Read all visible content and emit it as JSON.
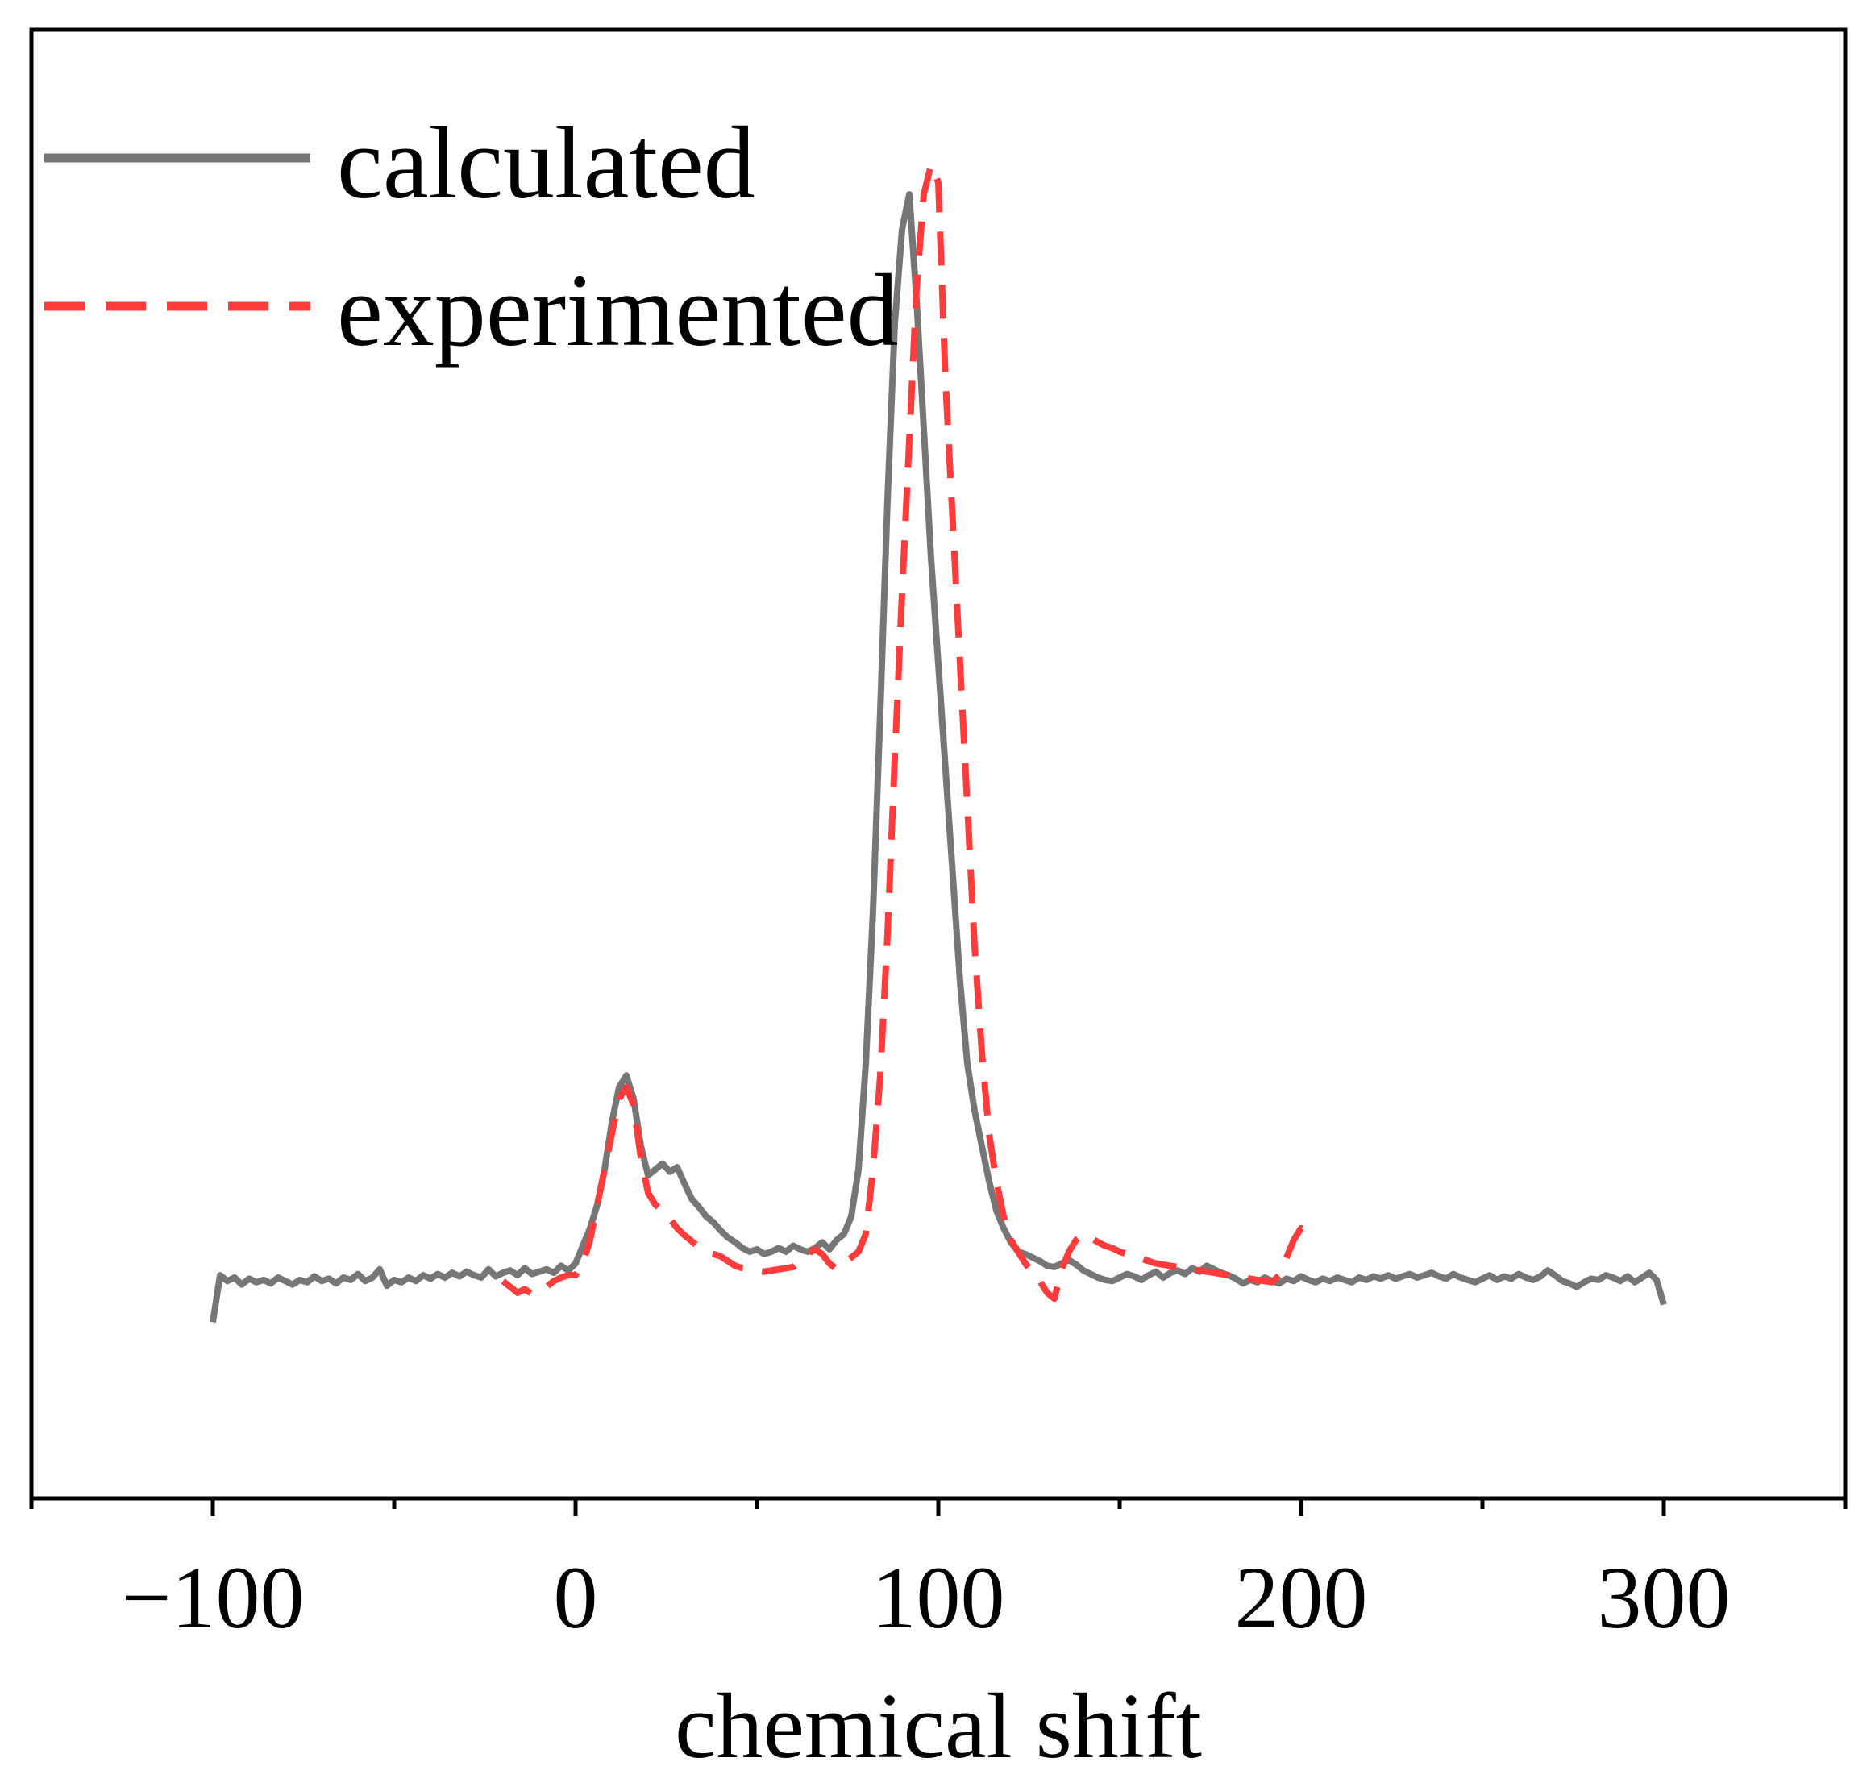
{
  "chart_data": {
    "type": "line",
    "title": "",
    "xlabel": "chemical shift",
    "ylabel": "",
    "xlim": [
      -150,
      350
    ],
    "ylim": [
      -0.15,
      1.1
    ],
    "xticks_major": [
      -100,
      0,
      100,
      200,
      300
    ],
    "xticks_minor": [
      -150,
      -50,
      50,
      150,
      250,
      350
    ],
    "xtick_labels": [
      "−100",
      "0",
      "100",
      "200",
      "300"
    ],
    "legend_position": "top-left",
    "series": [
      {
        "name": "calculated",
        "color": "#767676",
        "style": "solid",
        "x": [
          -100,
          -98,
          -96,
          -94,
          -92,
          -90,
          -88,
          -86,
          -84,
          -82,
          -80,
          -78,
          -76,
          -74,
          -72,
          -70,
          -68,
          -66,
          -64,
          -62,
          -60,
          -58,
          -56,
          -54,
          -52,
          -50,
          -48,
          -46,
          -44,
          -42,
          -40,
          -38,
          -36,
          -34,
          -32,
          -30,
          -28,
          -26,
          -24,
          -22,
          -20,
          -18,
          -16,
          -14,
          -12,
          -10,
          -8,
          -6,
          -4,
          -2,
          0,
          2,
          4,
          6,
          8,
          10,
          12,
          14,
          16,
          18,
          20,
          22,
          24,
          26,
          28,
          30,
          32,
          34,
          36,
          38,
          40,
          42,
          44,
          46,
          48,
          50,
          52,
          54,
          56,
          58,
          60,
          62,
          64,
          66,
          68,
          70,
          72,
          74,
          76,
          78,
          80,
          82,
          84,
          86,
          88,
          90,
          92,
          94,
          96,
          98,
          100,
          102,
          104,
          106,
          108,
          110,
          112,
          114,
          116,
          118,
          120,
          122,
          124,
          126,
          128,
          130,
          132,
          134,
          136,
          138,
          140,
          142,
          144,
          146,
          148,
          150,
          152,
          154,
          156,
          158,
          160,
          162,
          164,
          166,
          168,
          170,
          172,
          174,
          176,
          178,
          180,
          182,
          184,
          186,
          188,
          190,
          192,
          194,
          196,
          198,
          200,
          202,
          204,
          206,
          208,
          210,
          212,
          214,
          216,
          218,
          220,
          222,
          224,
          226,
          228,
          230,
          232,
          234,
          236,
          238,
          240,
          242,
          244,
          246,
          248,
          250,
          252,
          254,
          256,
          258,
          260,
          262,
          264,
          266,
          268,
          270,
          272,
          274,
          276,
          278,
          280,
          282,
          284,
          286,
          288,
          290,
          292,
          294,
          296,
          298,
          300
        ],
        "y": [
          0.0,
          0.04,
          0.035,
          0.038,
          0.032,
          0.037,
          0.034,
          0.036,
          0.033,
          0.038,
          0.035,
          0.032,
          0.036,
          0.034,
          0.039,
          0.035,
          0.037,
          0.033,
          0.038,
          0.036,
          0.041,
          0.035,
          0.038,
          0.045,
          0.031,
          0.036,
          0.034,
          0.038,
          0.035,
          0.04,
          0.037,
          0.041,
          0.038,
          0.042,
          0.039,
          0.043,
          0.04,
          0.038,
          0.045,
          0.039,
          0.042,
          0.044,
          0.04,
          0.046,
          0.041,
          0.043,
          0.045,
          0.042,
          0.048,
          0.044,
          0.05,
          0.065,
          0.08,
          0.1,
          0.13,
          0.17,
          0.2,
          0.21,
          0.19,
          0.15,
          0.125,
          0.13,
          0.135,
          0.128,
          0.132,
          0.118,
          0.105,
          0.098,
          0.09,
          0.085,
          0.078,
          0.072,
          0.068,
          0.063,
          0.06,
          0.062,
          0.058,
          0.06,
          0.063,
          0.06,
          0.065,
          0.062,
          0.06,
          0.063,
          0.068,
          0.062,
          0.07,
          0.075,
          0.09,
          0.13,
          0.22,
          0.35,
          0.52,
          0.7,
          0.85,
          0.93,
          0.96,
          0.87,
          0.76,
          0.65,
          0.56,
          0.47,
          0.38,
          0.29,
          0.22,
          0.18,
          0.15,
          0.12,
          0.095,
          0.08,
          0.068,
          0.06,
          0.058,
          0.055,
          0.052,
          0.048,
          0.047,
          0.05,
          0.053,
          0.049,
          0.044,
          0.041,
          0.038,
          0.036,
          0.035,
          0.038,
          0.041,
          0.039,
          0.036,
          0.04,
          0.043,
          0.038,
          0.042,
          0.044,
          0.041,
          0.046,
          0.043,
          0.048,
          0.045,
          0.042,
          0.04,
          0.037,
          0.033,
          0.036,
          0.034,
          0.038,
          0.035,
          0.033,
          0.037,
          0.035,
          0.039,
          0.036,
          0.034,
          0.037,
          0.035,
          0.038,
          0.036,
          0.034,
          0.038,
          0.036,
          0.039,
          0.037,
          0.04,
          0.037,
          0.039,
          0.041,
          0.038,
          0.04,
          0.042,
          0.039,
          0.037,
          0.041,
          0.038,
          0.036,
          0.034,
          0.037,
          0.04,
          0.036,
          0.039,
          0.037,
          0.041,
          0.038,
          0.036,
          0.039,
          0.044,
          0.04,
          0.035,
          0.033,
          0.03,
          0.034,
          0.037,
          0.036,
          0.04,
          0.038,
          0.035,
          0.039,
          0.034,
          0.038,
          0.042,
          0.036,
          0.015
        ]
      },
      {
        "name": "experimented",
        "color": "#FF3B3B",
        "style": "dashed",
        "x": [
          -20,
          -18,
          -16,
          -14,
          -12,
          -10,
          -8,
          -6,
          -4,
          -2,
          0,
          2,
          4,
          6,
          8,
          10,
          12,
          14,
          16,
          18,
          20,
          22,
          24,
          26,
          28,
          30,
          32,
          34,
          36,
          38,
          40,
          42,
          44,
          46,
          48,
          50,
          52,
          54,
          56,
          58,
          60,
          62,
          64,
          66,
          68,
          70,
          72,
          74,
          76,
          78,
          80,
          82,
          84,
          86,
          88,
          90,
          92,
          94,
          96,
          98,
          100,
          102,
          104,
          106,
          108,
          110,
          112,
          114,
          116,
          118,
          120,
          122,
          124,
          126,
          128,
          130,
          132,
          134,
          136,
          138,
          140,
          142,
          144,
          146,
          148,
          150,
          152,
          154,
          156,
          158,
          160,
          162,
          164,
          166,
          168,
          170,
          172,
          174,
          176,
          178,
          180,
          182,
          184,
          186,
          188,
          190,
          192,
          194,
          196,
          198,
          200,
          202,
          204
        ],
        "y": [
          0.035,
          0.03,
          0.025,
          0.028,
          0.024,
          0.026,
          0.03,
          0.035,
          0.038,
          0.04,
          0.04,
          0.05,
          0.07,
          0.1,
          0.13,
          0.16,
          0.19,
          0.2,
          0.185,
          0.14,
          0.11,
          0.1,
          0.095,
          0.088,
          0.08,
          0.074,
          0.069,
          0.064,
          0.06,
          0.058,
          0.056,
          0.052,
          0.048,
          0.046,
          0.045,
          0.044,
          0.043,
          0.044,
          0.045,
          0.046,
          0.047,
          0.052,
          0.058,
          0.062,
          0.058,
          0.05,
          0.045,
          0.05,
          0.055,
          0.06,
          0.075,
          0.13,
          0.21,
          0.33,
          0.48,
          0.62,
          0.75,
          0.88,
          0.96,
          0.985,
          0.97,
          0.8,
          0.68,
          0.56,
          0.44,
          0.32,
          0.23,
          0.16,
          0.12,
          0.09,
          0.07,
          0.06,
          0.05,
          0.042,
          0.035,
          0.025,
          0.02,
          0.045,
          0.06,
          0.07,
          0.075,
          0.072,
          0.068,
          0.065,
          0.063,
          0.06,
          0.058,
          0.056,
          0.054,
          0.052,
          0.05,
          0.049,
          0.048,
          0.047,
          0.046,
          0.045,
          0.044,
          0.043,
          0.042,
          0.041,
          0.04,
          0.039,
          0.038,
          0.037,
          0.036,
          0.035,
          0.034,
          0.04,
          0.055,
          0.07,
          0.08,
          0.076,
          0.072
        ]
      }
    ]
  }
}
